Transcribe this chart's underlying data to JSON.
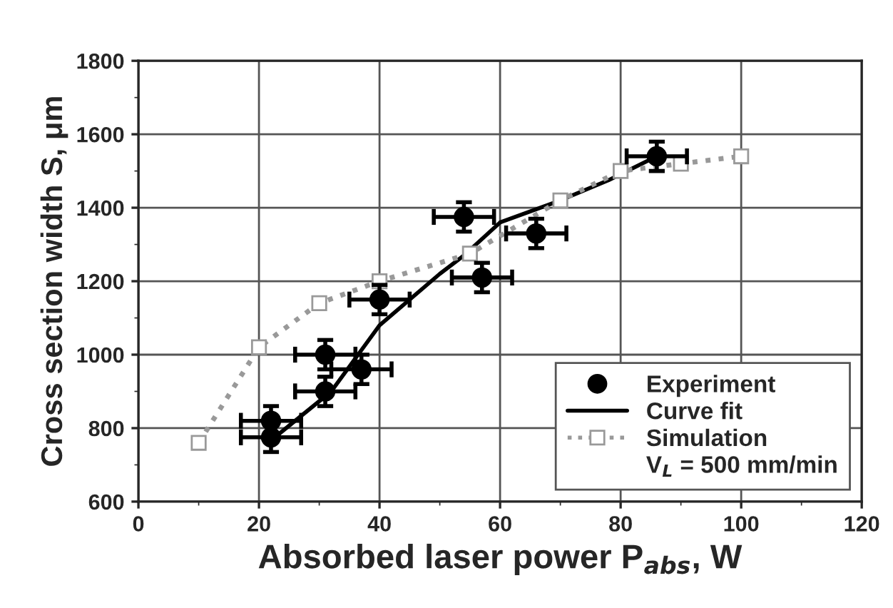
{
  "chart_data": {
    "type": "line",
    "xlabel": "Absorbed laser power P$_{abs}$, W",
    "ylabel": "Cross section width S, μm",
    "xlim": [
      0,
      120
    ],
    "xticks": [
      0,
      20,
      40,
      60,
      80,
      100,
      120
    ],
    "ylim": [
      600,
      1800
    ],
    "yticks": [
      600,
      800,
      1000,
      1200,
      1400,
      1600,
      1800
    ],
    "grid": true,
    "legend": "bottom right",
    "annotations": [
      "V$_{L}$ = 500 mm/min"
    ],
    "series": [
      {
        "name": "Experiment",
        "type": "scatter",
        "marker": "circle",
        "color": "#000000",
        "x": [
          22,
          22,
          31,
          31,
          37,
          40,
          54,
          57,
          66,
          86
        ],
        "values": [
          820,
          775,
          1000,
          900,
          960,
          1150,
          1375,
          1210,
          1330,
          1540
        ],
        "errors": [
          40,
          40,
          40,
          40,
          40,
          40,
          40,
          40,
          40,
          40
        ],
        "xerrors": [
          5,
          5,
          5,
          5,
          5,
          5,
          5,
          5,
          5,
          5
        ]
      },
      {
        "name": "Curve fit",
        "marker": "none",
        "line_style": "solid",
        "color": "#000000",
        "x": [
          23,
          32,
          40,
          50,
          54,
          60,
          70,
          78,
          86
        ],
        "values": [
          780,
          900,
          1080,
          1220,
          1270,
          1360,
          1420,
          1475,
          1540
        ]
      },
      {
        "name": "Simulation",
        "marker": "square",
        "line_style": "dotted",
        "color": "#999999",
        "x": [
          10,
          20,
          30,
          40,
          55,
          70,
          80,
          90,
          100
        ],
        "values": [
          760,
          1020,
          1140,
          1200,
          1275,
          1420,
          1500,
          1520,
          1540
        ]
      }
    ]
  }
}
